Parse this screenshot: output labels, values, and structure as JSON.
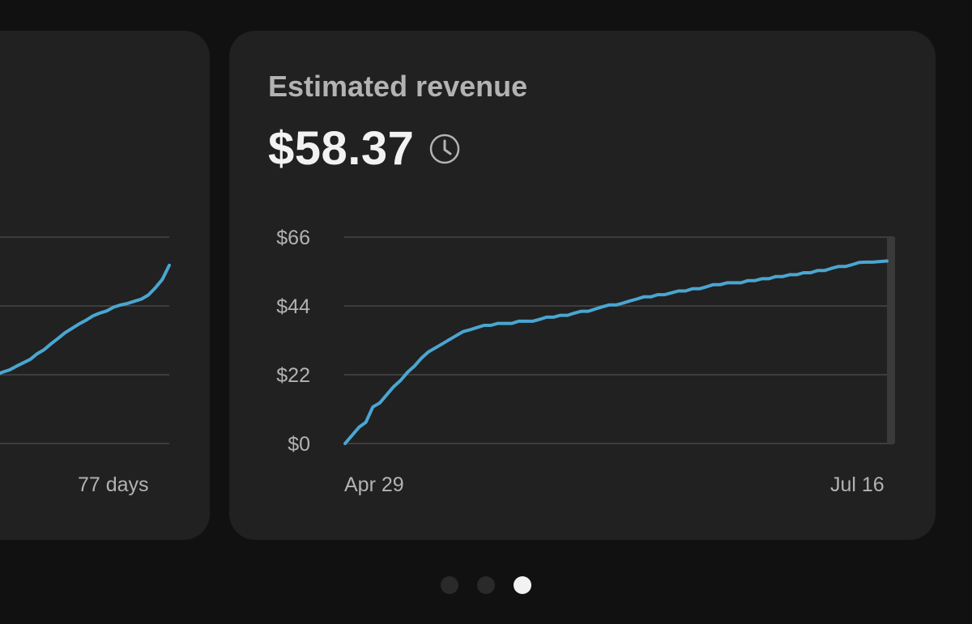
{
  "colors": {
    "background": "#111111",
    "card": "#212121",
    "line": "#4aa6d1",
    "grid": "#3d3d3d",
    "muted_text": "#b3b3b3",
    "primary_text": "#f2f2f2"
  },
  "cards": {
    "previous": {
      "x_end_label": "77 days"
    },
    "main": {
      "title": "Estimated revenue",
      "value": "$58.37",
      "status_icon": "clock-icon"
    }
  },
  "pagination": {
    "count": 3,
    "active_index": 2
  },
  "chart_data": [
    {
      "type": "line",
      "title": "",
      "xlabel": "",
      "ylabel": "",
      "x_end_label": "77 days",
      "ylim": [
        0,
        66
      ],
      "y_ticks": [
        0,
        22,
        44,
        66
      ],
      "grid": true,
      "series": [
        {
          "values": [
            20.6,
            20.8,
            20.8,
            21.3,
            21.8,
            22.8,
            23.5,
            24.7,
            25.8,
            26.9,
            28.7,
            30.0,
            31.9,
            33.6,
            35.4,
            36.8,
            38.2,
            39.4,
            40.8,
            41.7,
            42.4,
            43.6,
            44.3,
            44.8,
            45.5,
            46.2,
            47.5,
            49.8,
            52.5,
            57.0
          ]
        }
      ]
    },
    {
      "type": "line",
      "title": "",
      "xlabel": "",
      "ylabel": "",
      "x_start_label": "Apr 29",
      "x_end_label": "Jul 16",
      "ylim": [
        0,
        66
      ],
      "y_ticks": [
        0,
        22,
        44,
        66
      ],
      "y_tick_labels": [
        "$0",
        "$22",
        "$44",
        "$66"
      ],
      "grid": true,
      "series": [
        {
          "values": [
            0.0,
            2.6,
            5.2,
            6.8,
            11.7,
            13.0,
            15.6,
            18.2,
            20.2,
            22.8,
            24.8,
            27.3,
            29.3,
            30.6,
            31.9,
            33.2,
            34.5,
            35.8,
            36.4,
            37.1,
            37.8,
            37.8,
            38.4,
            38.4,
            38.4,
            39.1,
            39.1,
            39.1,
            39.7,
            40.4,
            40.4,
            41.0,
            41.0,
            41.7,
            42.3,
            42.3,
            43.0,
            43.7,
            44.3,
            44.3,
            44.9,
            45.6,
            46.2,
            46.9,
            46.9,
            47.6,
            47.6,
            48.2,
            48.8,
            48.8,
            49.5,
            49.5,
            50.1,
            50.8,
            50.8,
            51.4,
            51.4,
            51.4,
            52.1,
            52.1,
            52.7,
            52.7,
            53.4,
            53.4,
            54.0,
            54.0,
            54.6,
            54.6,
            55.3,
            55.3,
            56.0,
            56.6,
            56.6,
            57.2,
            57.9,
            58.0,
            58.0,
            58.2,
            58.37
          ]
        }
      ]
    }
  ]
}
